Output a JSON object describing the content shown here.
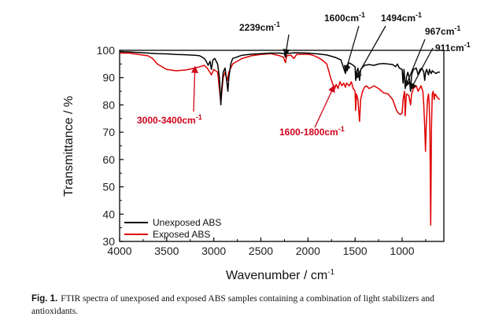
{
  "chart_data": {
    "type": "line",
    "title": "",
    "xlabel": "Wavenumber / cm",
    "xlabel_sup": "-1",
    "ylabel": "Transmittance / %",
    "xlim": [
      4000,
      600
    ],
    "ylim": [
      30,
      100
    ],
    "x_reversed": true,
    "x_ticks": [
      4000,
      3500,
      3000,
      2500,
      2000,
      1500,
      1000
    ],
    "x_tick_labels": [
      "4000",
      "3500",
      "3000",
      "2500",
      "2000",
      "1500",
      "1000"
    ],
    "y_ticks": [
      30,
      40,
      50,
      60,
      70,
      80,
      90,
      100
    ],
    "y_tick_labels": [
      "30",
      "40",
      "50",
      "60",
      "70",
      "80",
      "90",
      "100"
    ],
    "grid": false,
    "legend_position": "bottom-left",
    "series": [
      {
        "name": "Unexposed ABS",
        "color": "#000000",
        "points": [
          [
            4000,
            99.5
          ],
          [
            3900,
            99.4
          ],
          [
            3800,
            99.2
          ],
          [
            3700,
            99.0
          ],
          [
            3600,
            98.8
          ],
          [
            3500,
            98.7
          ],
          [
            3400,
            98.5
          ],
          [
            3300,
            98.4
          ],
          [
            3200,
            98.2
          ],
          [
            3150,
            98.0
          ],
          [
            3100,
            97.0
          ],
          [
            3080,
            96.0
          ],
          [
            3060,
            94.5
          ],
          [
            3040,
            96.0
          ],
          [
            3026,
            93.0
          ],
          [
            3010,
            96.5
          ],
          [
            2990,
            97.0
          ],
          [
            2960,
            95.0
          ],
          [
            2940,
            90.0
          ],
          [
            2925,
            80.0
          ],
          [
            2915,
            86.0
          ],
          [
            2900,
            92.0
          ],
          [
            2880,
            93.5
          ],
          [
            2860,
            88.0
          ],
          [
            2850,
            85.0
          ],
          [
            2840,
            90.0
          ],
          [
            2820,
            95.0
          ],
          [
            2800,
            97.0
          ],
          [
            2700,
            98.2
          ],
          [
            2600,
            98.6
          ],
          [
            2500,
            98.8
          ],
          [
            2400,
            99.0
          ],
          [
            2300,
            99.0
          ],
          [
            2250,
            98.8
          ],
          [
            2239,
            97.5
          ],
          [
            2228,
            98.8
          ],
          [
            2150,
            99.1
          ],
          [
            2000,
            99.0
          ],
          [
            1900,
            98.7
          ],
          [
            1800,
            98.3
          ],
          [
            1750,
            97.8
          ],
          [
            1700,
            97.3
          ],
          [
            1650,
            96.5
          ],
          [
            1602,
            91.5
          ],
          [
            1590,
            94.5
          ],
          [
            1583,
            92.5
          ],
          [
            1570,
            95.5
          ],
          [
            1540,
            95.0
          ],
          [
            1500,
            94.0
          ],
          [
            1494,
            89.0
          ],
          [
            1485,
            92.0
          ],
          [
            1470,
            93.5
          ],
          [
            1452,
            89.0
          ],
          [
            1440,
            93.0
          ],
          [
            1400,
            94.5
          ],
          [
            1350,
            94.8
          ],
          [
            1300,
            94.5
          ],
          [
            1250,
            95.0
          ],
          [
            1200,
            95.2
          ],
          [
            1150,
            95.0
          ],
          [
            1100,
            94.8
          ],
          [
            1070,
            94.0
          ],
          [
            1050,
            95.0
          ],
          [
            1030,
            93.5
          ],
          [
            1000,
            93.0
          ],
          [
            990,
            88.0
          ],
          [
            980,
            93.0
          ],
          [
            967,
            86.0
          ],
          [
            955,
            90.0
          ],
          [
            940,
            92.0
          ],
          [
            925,
            90.0
          ],
          [
            911,
            85.0
          ],
          [
            900,
            91.0
          ],
          [
            880,
            93.0
          ],
          [
            850,
            93.5
          ],
          [
            830,
            91.0
          ],
          [
            810,
            93.0
          ],
          [
            790,
            93.5
          ],
          [
            770,
            92.0
          ],
          [
            760,
            89.0
          ],
          [
            750,
            92.0
          ],
          [
            740,
            93.0
          ],
          [
            720,
            91.0
          ],
          [
            710,
            93.0
          ],
          [
            700,
            92.0
          ],
          [
            690,
            91.5
          ],
          [
            680,
            92.5
          ],
          [
            660,
            92.0
          ],
          [
            640,
            91.5
          ],
          [
            620,
            92.0
          ],
          [
            600,
            92.0
          ]
        ]
      },
      {
        "name": "Exposed ABS",
        "color": "#e00000",
        "points": [
          [
            4000,
            99.0
          ],
          [
            3900,
            99.0
          ],
          [
            3800,
            98.5
          ],
          [
            3700,
            98.0
          ],
          [
            3650,
            97.0
          ],
          [
            3600,
            95.0
          ],
          [
            3500,
            93.0
          ],
          [
            3400,
            92.5
          ],
          [
            3300,
            92.8
          ],
          [
            3200,
            93.5
          ],
          [
            3100,
            94.5
          ],
          [
            3060,
            93.0
          ],
          [
            3026,
            91.0
          ],
          [
            3000,
            93.0
          ],
          [
            2960,
            92.0
          ],
          [
            2925,
            81.0
          ],
          [
            2900,
            90.0
          ],
          [
            2880,
            92.0
          ],
          [
            2855,
            89.0
          ],
          [
            2840,
            92.0
          ],
          [
            2800,
            95.0
          ],
          [
            2700,
            97.0
          ],
          [
            2600,
            98.0
          ],
          [
            2500,
            98.5
          ],
          [
            2400,
            98.8
          ],
          [
            2300,
            98.0
          ],
          [
            2260,
            97.5
          ],
          [
            2239,
            95.5
          ],
          [
            2225,
            98.0
          ],
          [
            2180,
            98.2
          ],
          [
            2150,
            97.0
          ],
          [
            2120,
            98.5
          ],
          [
            2000,
            98.6
          ],
          [
            1950,
            98.2
          ],
          [
            1900,
            97.5
          ],
          [
            1850,
            96.5
          ],
          [
            1800,
            95.0
          ],
          [
            1760,
            90.0
          ],
          [
            1730,
            87.0
          ],
          [
            1715,
            86.0
          ],
          [
            1700,
            87.5
          ],
          [
            1680,
            86.0
          ],
          [
            1660,
            88.5
          ],
          [
            1640,
            87.0
          ],
          [
            1620,
            88.0
          ],
          [
            1602,
            86.5
          ],
          [
            1590,
            88.0
          ],
          [
            1560,
            87.0
          ],
          [
            1540,
            88.5
          ],
          [
            1520,
            86.0
          ],
          [
            1500,
            85.0
          ],
          [
            1494,
            78.0
          ],
          [
            1485,
            84.0
          ],
          [
            1470,
            82.0
          ],
          [
            1452,
            74.0
          ],
          [
            1440,
            82.0
          ],
          [
            1420,
            85.0
          ],
          [
            1400,
            86.5
          ],
          [
            1380,
            87.0
          ],
          [
            1350,
            86.0
          ],
          [
            1300,
            87.0
          ],
          [
            1250,
            86.0
          ],
          [
            1200,
            84.5
          ],
          [
            1150,
            84.0
          ],
          [
            1100,
            82.0
          ],
          [
            1080,
            80.0
          ],
          [
            1060,
            78.0
          ],
          [
            1040,
            77.0
          ],
          [
            1020,
            76.5
          ],
          [
            1000,
            77.0
          ],
          [
            990,
            82.0
          ],
          [
            975,
            85.0
          ],
          [
            967,
            76.0
          ],
          [
            955,
            84.0
          ],
          [
            930,
            83.5
          ],
          [
            911,
            80.0
          ],
          [
            900,
            84.0
          ],
          [
            880,
            86.0
          ],
          [
            850,
            87.0
          ],
          [
            830,
            85.0
          ],
          [
            815,
            86.0
          ],
          [
            800,
            87.0
          ],
          [
            780,
            85.0
          ],
          [
            770,
            80.0
          ],
          [
            760,
            72.0
          ],
          [
            752,
            63.0
          ],
          [
            744,
            72.0
          ],
          [
            730,
            82.0
          ],
          [
            720,
            84.0
          ],
          [
            712,
            80.0
          ],
          [
            705,
            70.0
          ],
          [
            700,
            50.0
          ],
          [
            697,
            36.0
          ],
          [
            693,
            50.0
          ],
          [
            688,
            72.0
          ],
          [
            680,
            84.0
          ],
          [
            670,
            85.0
          ],
          [
            660,
            82.0
          ],
          [
            650,
            84.0
          ],
          [
            640,
            83.5
          ],
          [
            620,
            82.5
          ],
          [
            600,
            82.0
          ]
        ]
      }
    ],
    "annotations": [
      {
        "text": "2239cm",
        "sup": "-1",
        "color": "black",
        "target": [
          2239,
          97.5
        ]
      },
      {
        "text": "1600cm",
        "sup": "-1",
        "color": "black",
        "target": [
          1602,
          91.5
        ]
      },
      {
        "text": "1494cm",
        "sup": "-1",
        "color": "black",
        "target": [
          1494,
          89.0
        ]
      },
      {
        "text": "967cm",
        "sup": "-1",
        "color": "black",
        "target": [
          967,
          86.0
        ]
      },
      {
        "text": "911cm",
        "sup": "-1",
        "color": "black",
        "target": [
          911,
          85.0
        ]
      },
      {
        "text": "3000-3400cm",
        "sup": "-1",
        "color": "red",
        "target": [
          3200,
          93.5
        ]
      },
      {
        "text": "1600-1800cm",
        "sup": "-1",
        "color": "red",
        "target": [
          1720,
          86.5
        ]
      }
    ]
  },
  "legend": {
    "unexposed_label": "Unexposed ABS",
    "exposed_label": "Exposed ABS"
  },
  "caption": {
    "label": "Fig. 1.",
    "text": "FTIR spectra of unexposed and exposed ABS samples containing a combination of light stabilizers and antioxidants."
  }
}
